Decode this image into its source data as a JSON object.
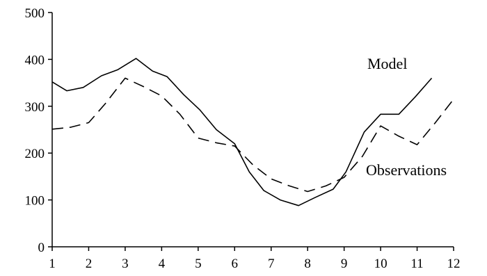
{
  "chart_data": {
    "type": "line",
    "title": "",
    "xlabel": "",
    "ylabel": "",
    "xlim": [
      1,
      12
    ],
    "ylim": [
      0,
      500
    ],
    "x_ticks": [
      1,
      2,
      3,
      4,
      5,
      6,
      7,
      8,
      9,
      10,
      11,
      12
    ],
    "y_ticks": [
      0,
      100,
      200,
      300,
      400,
      500
    ],
    "grid": false,
    "legend": "inline labels",
    "series": [
      {
        "name": "Model",
        "style": "solid",
        "x": [
          1.0,
          1.4,
          1.85,
          2.35,
          2.8,
          3.3,
          3.75,
          4.15,
          4.6,
          5.05,
          5.5,
          6.0,
          6.4,
          6.8,
          7.25,
          7.75,
          8.2,
          8.7,
          9.05,
          9.55,
          10.0,
          10.5,
          10.95,
          11.4
        ],
        "values": [
          352,
          333,
          340,
          365,
          378,
          402,
          375,
          363,
          325,
          292,
          250,
          220,
          160,
          120,
          100,
          88,
          105,
          123,
          160,
          245,
          283,
          283,
          320,
          360
        ]
      },
      {
        "name": "Observations",
        "style": "dashed",
        "x": [
          1.0,
          1.5,
          2.0,
          2.45,
          3.0,
          3.5,
          4.0,
          4.5,
          5.0,
          5.5,
          6.0,
          6.5,
          7.0,
          7.5,
          8.0,
          8.5,
          9.0,
          9.5,
          10.0,
          10.5,
          11.0,
          11.5,
          12.0
        ],
        "values": [
          251,
          255,
          265,
          305,
          360,
          342,
          322,
          283,
          232,
          222,
          215,
          175,
          145,
          130,
          118,
          130,
          148,
          193,
          258,
          236,
          218,
          265,
          315
        ]
      }
    ]
  }
}
